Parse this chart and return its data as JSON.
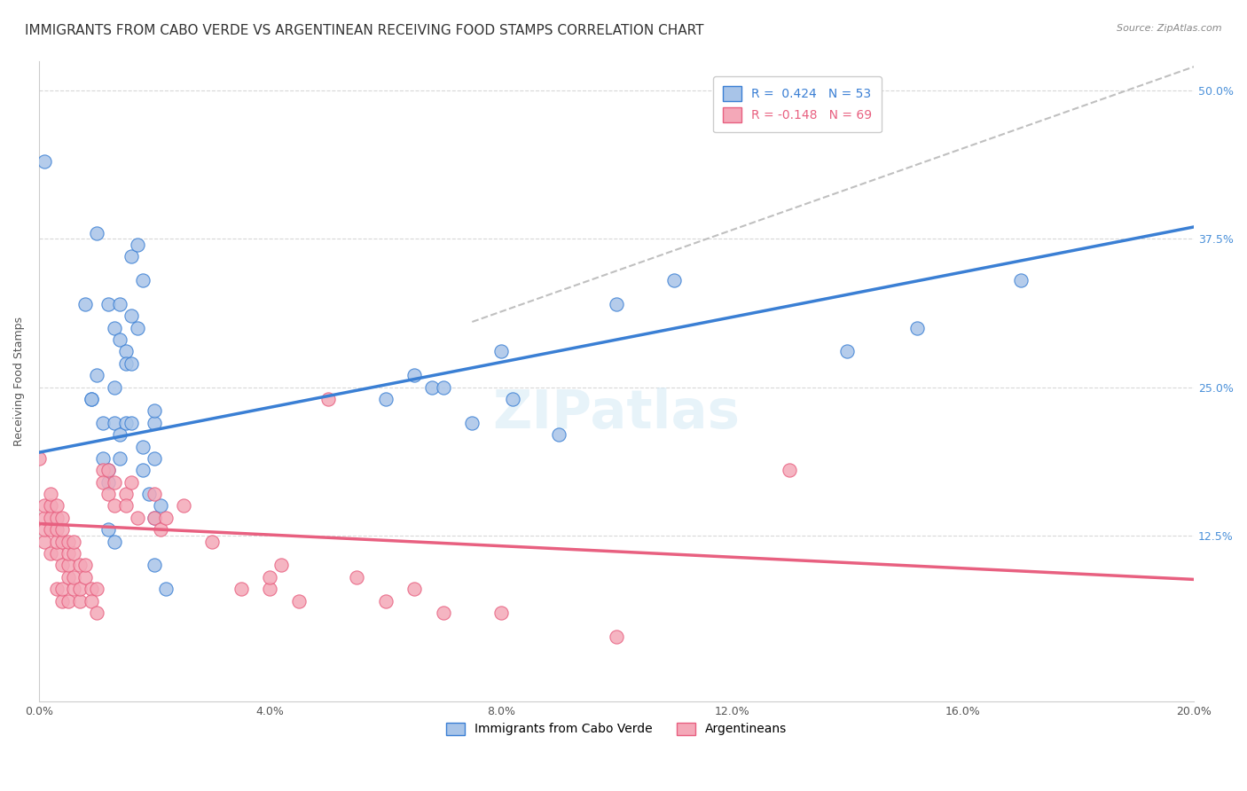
{
  "title": "IMMIGRANTS FROM CABO VERDE VS ARGENTINEAN RECEIVING FOOD STAMPS CORRELATION CHART",
  "source": "Source: ZipAtlas.com",
  "ylabel": "Receiving Food Stamps",
  "yticks": [
    "12.5%",
    "25.0%",
    "37.5%",
    "50.0%"
  ],
  "ytick_vals": [
    0.125,
    0.25,
    0.375,
    0.5
  ],
  "xmin": 0.0,
  "xmax": 0.2,
  "ymin": -0.015,
  "ymax": 0.525,
  "cabo_verde_R": 0.424,
  "cabo_verde_N": 53,
  "argentinean_R": -0.148,
  "argentinean_N": 69,
  "cabo_verde_color": "#a8c4e8",
  "argentinean_color": "#f4a8b8",
  "cabo_verde_line_color": "#3a7fd4",
  "argentinean_line_color": "#e86080",
  "dashed_line_color": "#c0c0c0",
  "cabo_verde_line": [
    [
      0.0,
      0.195
    ],
    [
      0.2,
      0.385
    ]
  ],
  "argentinean_line": [
    [
      0.0,
      0.135
    ],
    [
      0.2,
      0.088
    ]
  ],
  "dashed_line": [
    [
      0.075,
      0.305
    ],
    [
      0.2,
      0.52
    ]
  ],
  "cabo_verde_scatter": [
    [
      0.001,
      0.44
    ],
    [
      0.008,
      0.32
    ],
    [
      0.009,
      0.24
    ],
    [
      0.009,
      0.24
    ],
    [
      0.01,
      0.38
    ],
    [
      0.01,
      0.26
    ],
    [
      0.011,
      0.22
    ],
    [
      0.011,
      0.19
    ],
    [
      0.012,
      0.18
    ],
    [
      0.012,
      0.17
    ],
    [
      0.012,
      0.32
    ],
    [
      0.013,
      0.3
    ],
    [
      0.013,
      0.25
    ],
    [
      0.013,
      0.22
    ],
    [
      0.014,
      0.21
    ],
    [
      0.014,
      0.19
    ],
    [
      0.014,
      0.32
    ],
    [
      0.014,
      0.29
    ],
    [
      0.015,
      0.28
    ],
    [
      0.015,
      0.27
    ],
    [
      0.015,
      0.22
    ],
    [
      0.016,
      0.31
    ],
    [
      0.016,
      0.27
    ],
    [
      0.016,
      0.36
    ],
    [
      0.016,
      0.22
    ],
    [
      0.017,
      0.3
    ],
    [
      0.017,
      0.37
    ],
    [
      0.018,
      0.34
    ],
    [
      0.018,
      0.2
    ],
    [
      0.018,
      0.18
    ],
    [
      0.019,
      0.16
    ],
    [
      0.02,
      0.1
    ],
    [
      0.02,
      0.14
    ],
    [
      0.02,
      0.19
    ],
    [
      0.02,
      0.22
    ],
    [
      0.02,
      0.23
    ],
    [
      0.021,
      0.15
    ],
    [
      0.022,
      0.08
    ],
    [
      0.06,
      0.24
    ],
    [
      0.065,
      0.26
    ],
    [
      0.068,
      0.25
    ],
    [
      0.07,
      0.25
    ],
    [
      0.075,
      0.22
    ],
    [
      0.08,
      0.28
    ],
    [
      0.082,
      0.24
    ],
    [
      0.09,
      0.21
    ],
    [
      0.1,
      0.32
    ],
    [
      0.11,
      0.34
    ],
    [
      0.14,
      0.28
    ],
    [
      0.152,
      0.3
    ],
    [
      0.17,
      0.34
    ],
    [
      0.012,
      0.13
    ],
    [
      0.013,
      0.12
    ]
  ],
  "argentinean_scatter": [
    [
      0.0,
      0.19
    ],
    [
      0.001,
      0.12
    ],
    [
      0.001,
      0.13
    ],
    [
      0.001,
      0.14
    ],
    [
      0.001,
      0.15
    ],
    [
      0.002,
      0.11
    ],
    [
      0.002,
      0.13
    ],
    [
      0.002,
      0.14
    ],
    [
      0.002,
      0.15
    ],
    [
      0.002,
      0.16
    ],
    [
      0.003,
      0.11
    ],
    [
      0.003,
      0.12
    ],
    [
      0.003,
      0.13
    ],
    [
      0.003,
      0.14
    ],
    [
      0.003,
      0.15
    ],
    [
      0.003,
      0.08
    ],
    [
      0.004,
      0.1
    ],
    [
      0.004,
      0.12
    ],
    [
      0.004,
      0.13
    ],
    [
      0.004,
      0.14
    ],
    [
      0.004,
      0.07
    ],
    [
      0.004,
      0.08
    ],
    [
      0.005,
      0.09
    ],
    [
      0.005,
      0.1
    ],
    [
      0.005,
      0.11
    ],
    [
      0.005,
      0.12
    ],
    [
      0.005,
      0.07
    ],
    [
      0.006,
      0.08
    ],
    [
      0.006,
      0.09
    ],
    [
      0.006,
      0.11
    ],
    [
      0.006,
      0.12
    ],
    [
      0.007,
      0.1
    ],
    [
      0.007,
      0.07
    ],
    [
      0.007,
      0.08
    ],
    [
      0.008,
      0.09
    ],
    [
      0.008,
      0.1
    ],
    [
      0.009,
      0.08
    ],
    [
      0.009,
      0.07
    ],
    [
      0.01,
      0.06
    ],
    [
      0.01,
      0.08
    ],
    [
      0.011,
      0.18
    ],
    [
      0.011,
      0.17
    ],
    [
      0.012,
      0.18
    ],
    [
      0.012,
      0.16
    ],
    [
      0.013,
      0.17
    ],
    [
      0.013,
      0.15
    ],
    [
      0.015,
      0.16
    ],
    [
      0.015,
      0.15
    ],
    [
      0.016,
      0.17
    ],
    [
      0.017,
      0.14
    ],
    [
      0.02,
      0.16
    ],
    [
      0.02,
      0.14
    ],
    [
      0.021,
      0.13
    ],
    [
      0.022,
      0.14
    ],
    [
      0.025,
      0.15
    ],
    [
      0.03,
      0.12
    ],
    [
      0.035,
      0.08
    ],
    [
      0.04,
      0.08
    ],
    [
      0.04,
      0.09
    ],
    [
      0.042,
      0.1
    ],
    [
      0.045,
      0.07
    ],
    [
      0.05,
      0.24
    ],
    [
      0.055,
      0.09
    ],
    [
      0.06,
      0.07
    ],
    [
      0.065,
      0.08
    ],
    [
      0.07,
      0.06
    ],
    [
      0.08,
      0.06
    ],
    [
      0.13,
      0.18
    ],
    [
      0.1,
      0.04
    ]
  ],
  "background_color": "#ffffff",
  "grid_color": "#d8d8d8",
  "title_fontsize": 11,
  "axis_label_fontsize": 9,
  "tick_fontsize": 9,
  "legend_fontsize": 10
}
